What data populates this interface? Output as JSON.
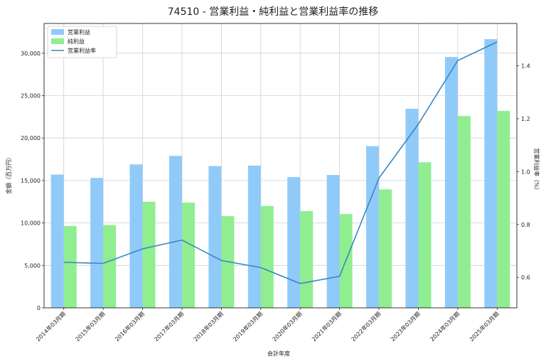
{
  "chart_data": {
    "type": "bar",
    "title": "74510 - 営業利益・純利益と営業利益率の推移",
    "xlabel": "会計年度",
    "ylabel": "金額（百万円）",
    "y2label": "営業利益率（%）",
    "categories": [
      "2014年03月期",
      "2015年03月期",
      "2016年03月期",
      "2017年03月期",
      "2018年03月期",
      "2019年03月期",
      "2020年03月期",
      "2021年03月期",
      "2022年03月期",
      "2023年03月期",
      "2024年03月期",
      "2025年03月期"
    ],
    "series": [
      {
        "name": "営業利益",
        "kind": "bar",
        "axis": "left",
        "color": "#90CAF9",
        "values": [
          15700,
          15300,
          16900,
          17900,
          16700,
          16750,
          15400,
          15650,
          19050,
          23450,
          29550,
          31650
        ]
      },
      {
        "name": "純利益",
        "kind": "bar",
        "axis": "left",
        "color": "#90EE90",
        "values": [
          9650,
          9750,
          12500,
          12400,
          10800,
          12000,
          11400,
          11050,
          13950,
          17150,
          22600,
          23200
        ]
      },
      {
        "name": "営業利益率",
        "kind": "line",
        "axis": "right",
        "color": "#3A87C0",
        "values": [
          0.657,
          0.653,
          0.708,
          0.741,
          0.664,
          0.637,
          0.577,
          0.604,
          0.975,
          1.18,
          1.42,
          1.49
        ]
      }
    ],
    "ylim": [
      0,
      33500
    ],
    "y2lim": [
      0.485,
      1.56
    ],
    "yticks": [
      0,
      5000,
      10000,
      15000,
      20000,
      25000,
      30000
    ],
    "ytick_labels": [
      "0",
      "5,000",
      "10,000",
      "15,000",
      "20,000",
      "25,000",
      "30,000"
    ],
    "y2ticks": [
      0.6,
      0.8,
      1.0,
      1.2,
      1.4
    ],
    "y2tick_labels": [
      "0.6",
      "0.8",
      "1.0",
      "1.2",
      "1.4"
    ],
    "grid": true,
    "legend_position": "top-left"
  }
}
